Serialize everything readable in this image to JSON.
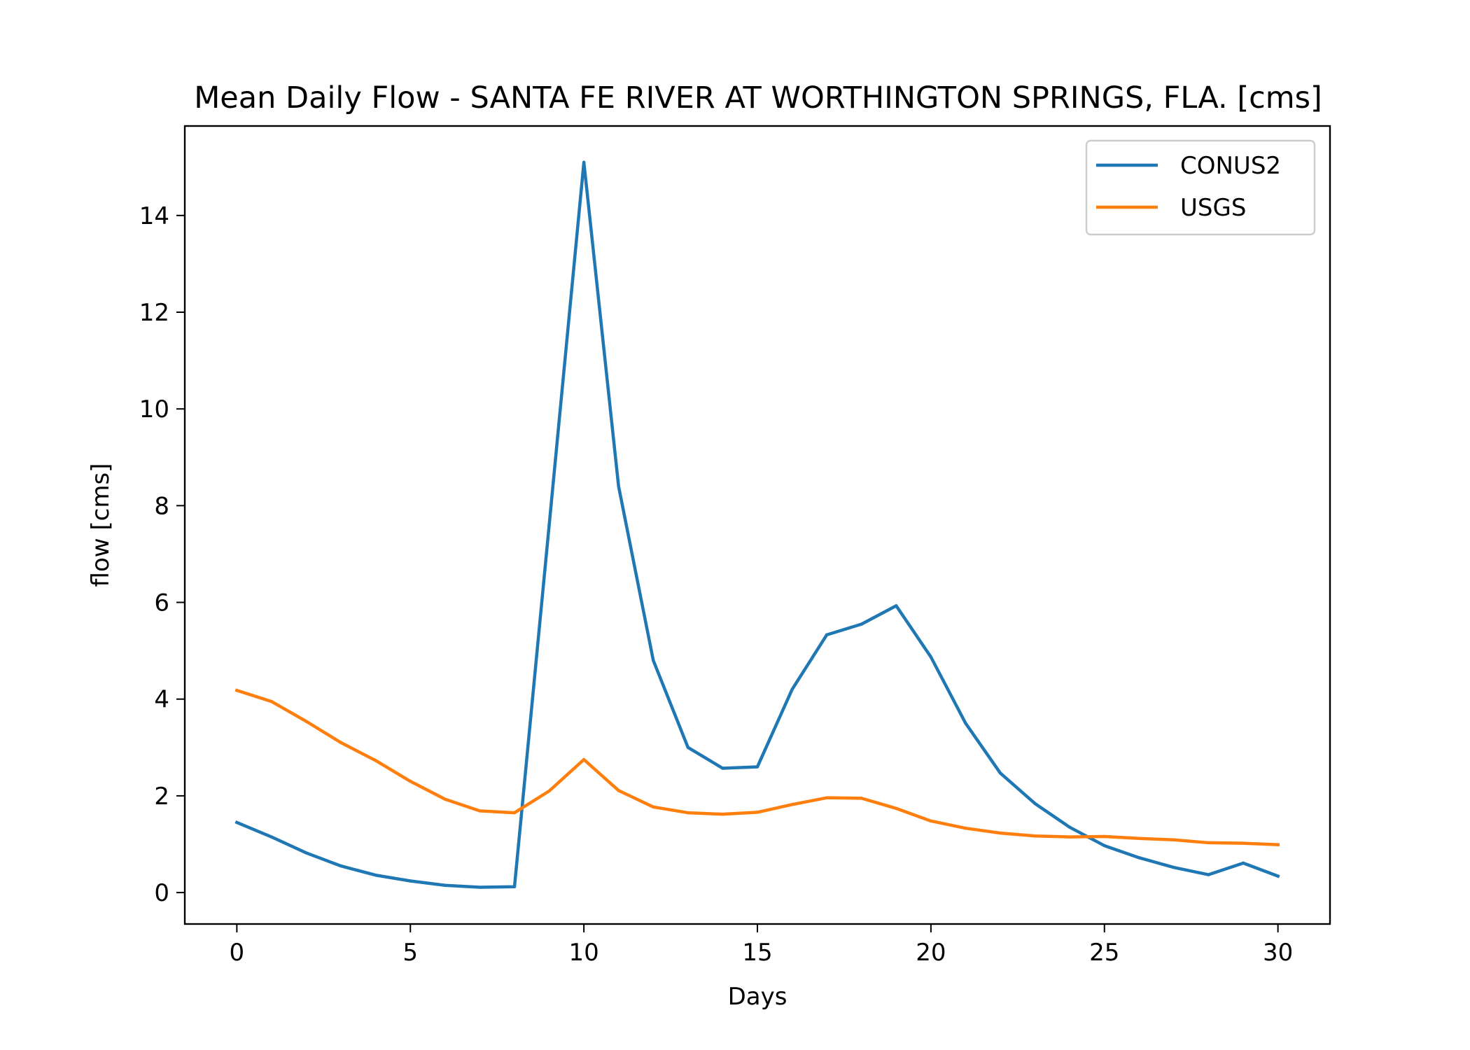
{
  "chart_data": {
    "type": "line",
    "title": "Mean Daily Flow - SANTA FE RIVER AT WORTHINGTON SPRINGS, FLA. [cms]",
    "xlabel": "Days",
    "ylabel": "flow [cms]",
    "xlim": [
      -1.5,
      31.5
    ],
    "ylim": [
      -0.65,
      15.85
    ],
    "xticks": [
      0,
      5,
      10,
      15,
      20,
      25,
      30
    ],
    "yticks": [
      0,
      2,
      4,
      6,
      8,
      10,
      12,
      14
    ],
    "grid": false,
    "legend_position": "upper right",
    "x": [
      0,
      1,
      2,
      3,
      4,
      5,
      6,
      7,
      8,
      9,
      10,
      11,
      12,
      13,
      14,
      15,
      16,
      17,
      18,
      19,
      20,
      21,
      22,
      23,
      24,
      25,
      26,
      27,
      28,
      29,
      30
    ],
    "series": [
      {
        "name": "CONUS2",
        "color": "#1f77b4",
        "values": [
          1.45,
          1.15,
          0.82,
          0.55,
          0.36,
          0.24,
          0.15,
          0.11,
          0.12,
          7.6,
          15.1,
          8.4,
          4.8,
          3.0,
          2.57,
          2.6,
          4.2,
          5.33,
          5.55,
          5.93,
          4.87,
          3.5,
          2.47,
          1.84,
          1.35,
          0.97,
          0.72,
          0.52,
          0.37,
          0.61,
          0.34
        ]
      },
      {
        "name": "USGS",
        "color": "#ff7f0e",
        "values": [
          4.18,
          3.95,
          3.54,
          3.1,
          2.73,
          2.3,
          1.93,
          1.69,
          1.65,
          2.1,
          2.75,
          2.11,
          1.77,
          1.65,
          1.62,
          1.66,
          1.82,
          1.96,
          1.95,
          1.74,
          1.48,
          1.33,
          1.23,
          1.17,
          1.15,
          1.16,
          1.12,
          1.09,
          1.03,
          1.02,
          0.99
        ]
      }
    ]
  }
}
